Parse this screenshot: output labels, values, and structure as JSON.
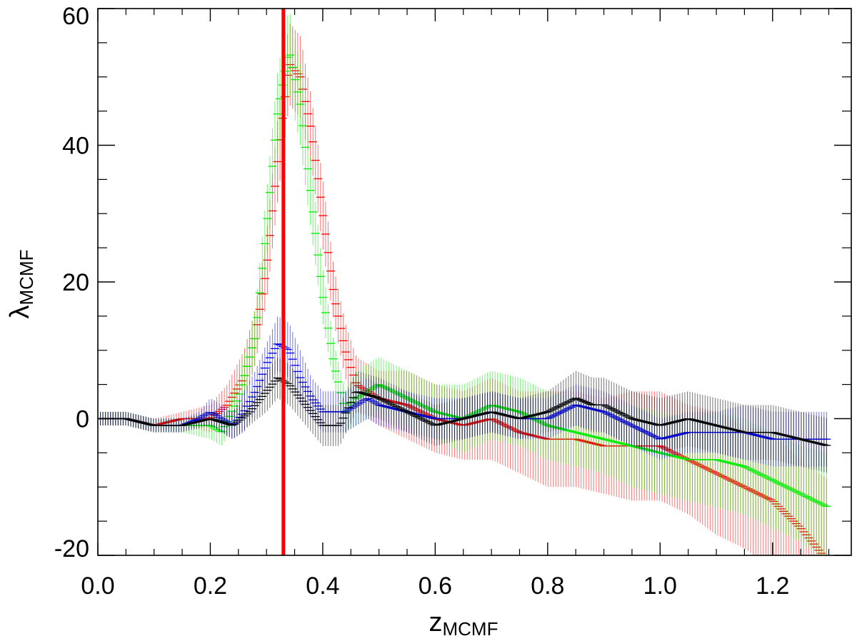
{
  "chart_data": {
    "type": "scatter",
    "xlabel": {
      "main": "z",
      "sub": "MCMF"
    },
    "ylabel": {
      "main": "λ",
      "sub": "MCMF"
    },
    "xlim": [
      0.0,
      1.34
    ],
    "ylim": [
      -20,
      60
    ],
    "x_ticks": [
      0.0,
      0.2,
      0.4,
      0.6,
      0.8,
      1.0,
      1.2
    ],
    "x_tick_labels": [
      "0.0",
      "0.2",
      "0.4",
      "0.6",
      "0.8",
      "1.0",
      "1.2"
    ],
    "y_ticks": [
      -20,
      0,
      20,
      40,
      60
    ],
    "y_tick_labels": [
      "-20",
      "0",
      "20",
      "40",
      "60"
    ],
    "x_minor_step": 0.05,
    "y_minor_step": 5,
    "grid": false,
    "legend": "none",
    "reference_line": {
      "x": 0.33,
      "color": "#ff0000"
    },
    "series": [
      {
        "color": "#ff0000",
        "x": [
          0.0,
          0.05,
          0.1,
          0.15,
          0.2,
          0.23,
          0.26,
          0.28,
          0.3,
          0.32,
          0.34,
          0.36,
          0.38,
          0.4,
          0.42,
          0.44,
          0.46,
          0.5,
          0.55,
          0.6,
          0.65,
          0.7,
          0.75,
          0.8,
          0.85,
          0.9,
          0.95,
          1.0,
          1.05,
          1.1,
          1.15,
          1.2,
          1.25,
          1.3
        ],
        "y": [
          0,
          0,
          -1,
          0,
          0,
          2,
          6,
          12,
          22,
          38,
          52,
          50,
          42,
          30,
          18,
          10,
          5,
          3,
          2,
          0,
          -1,
          0,
          -2,
          -3,
          -3,
          -4,
          -4,
          -4,
          -6,
          -8,
          -10,
          -12,
          -16,
          -21
        ],
        "err": [
          1,
          1,
          1,
          1,
          2,
          3,
          4,
          4,
          5,
          6,
          6,
          6,
          5,
          5,
          4,
          4,
          4,
          4,
          5,
          5,
          5,
          6,
          6,
          7,
          7,
          7,
          8,
          8,
          8,
          9,
          9,
          10,
          10,
          12
        ]
      },
      {
        "color": "#00ee00",
        "x": [
          0.0,
          0.05,
          0.1,
          0.15,
          0.2,
          0.22,
          0.25,
          0.28,
          0.3,
          0.32,
          0.34,
          0.36,
          0.38,
          0.4,
          0.42,
          0.44,
          0.46,
          0.5,
          0.55,
          0.6,
          0.65,
          0.7,
          0.75,
          0.8,
          0.85,
          0.9,
          0.95,
          1.0,
          1.05,
          1.1,
          1.15,
          1.2,
          1.25,
          1.3
        ],
        "y": [
          0,
          0,
          -1,
          -1,
          -1,
          -2,
          3,
          12,
          28,
          45,
          54,
          46,
          32,
          18,
          8,
          1,
          3,
          5,
          3,
          1,
          0,
          2,
          1,
          -1,
          -2,
          -3,
          -4,
          -5,
          -6,
          -6,
          -7,
          -9,
          -11,
          -13
        ],
        "err": [
          1,
          1,
          1,
          1,
          2,
          2,
          3,
          4,
          5,
          6,
          6,
          6,
          5,
          4,
          3,
          3,
          4,
          4,
          4,
          4,
          5,
          5,
          5,
          5,
          5,
          5,
          6,
          6,
          6,
          7,
          7,
          7,
          7,
          8
        ]
      },
      {
        "color": "#0000ee",
        "x": [
          0.0,
          0.05,
          0.1,
          0.15,
          0.18,
          0.2,
          0.22,
          0.24,
          0.26,
          0.28,
          0.3,
          0.32,
          0.34,
          0.36,
          0.38,
          0.4,
          0.44,
          0.48,
          0.5,
          0.55,
          0.6,
          0.65,
          0.7,
          0.75,
          0.8,
          0.85,
          0.9,
          0.95,
          1.0,
          1.05,
          1.1,
          1.15,
          1.2,
          1.25,
          1.3
        ],
        "y": [
          0,
          0,
          -1,
          -1,
          0,
          1,
          0,
          -1,
          1,
          4,
          8,
          11,
          10,
          6,
          3,
          1,
          1,
          3,
          2,
          1,
          0,
          0,
          1,
          0,
          0,
          2,
          1,
          -1,
          -3,
          -2,
          -2,
          -2,
          -3,
          -3,
          -3
        ],
        "err": [
          1,
          1,
          1,
          1,
          1,
          2,
          2,
          2,
          3,
          3,
          3,
          4,
          4,
          4,
          3,
          3,
          3,
          3,
          3,
          3,
          3,
          3,
          3,
          3,
          3,
          3,
          3,
          3,
          3,
          3,
          3,
          4,
          4,
          4,
          4
        ]
      },
      {
        "color": "#000000",
        "x": [
          0.0,
          0.05,
          0.1,
          0.15,
          0.2,
          0.24,
          0.27,
          0.3,
          0.32,
          0.34,
          0.36,
          0.38,
          0.4,
          0.43,
          0.46,
          0.5,
          0.55,
          0.6,
          0.65,
          0.7,
          0.75,
          0.8,
          0.85,
          0.88,
          0.9,
          0.95,
          1.0,
          1.05,
          1.1,
          1.15,
          1.2,
          1.25,
          1.3
        ],
        "y": [
          0,
          0,
          -1,
          -1,
          0,
          -1,
          1,
          4,
          6,
          5,
          3,
          1,
          -1,
          -1,
          4,
          3,
          1,
          -1,
          0,
          1,
          0,
          1,
          3,
          2,
          2,
          0,
          -1,
          0,
          -1,
          -2,
          -2,
          -3,
          -4
        ],
        "err": [
          1,
          1,
          1,
          1,
          1,
          2,
          2,
          3,
          3,
          3,
          3,
          3,
          3,
          3,
          3,
          3,
          3,
          3,
          3,
          3,
          3,
          3,
          4,
          4,
          4,
          4,
          4,
          4,
          4,
          4,
          4,
          4,
          4
        ]
      }
    ]
  }
}
